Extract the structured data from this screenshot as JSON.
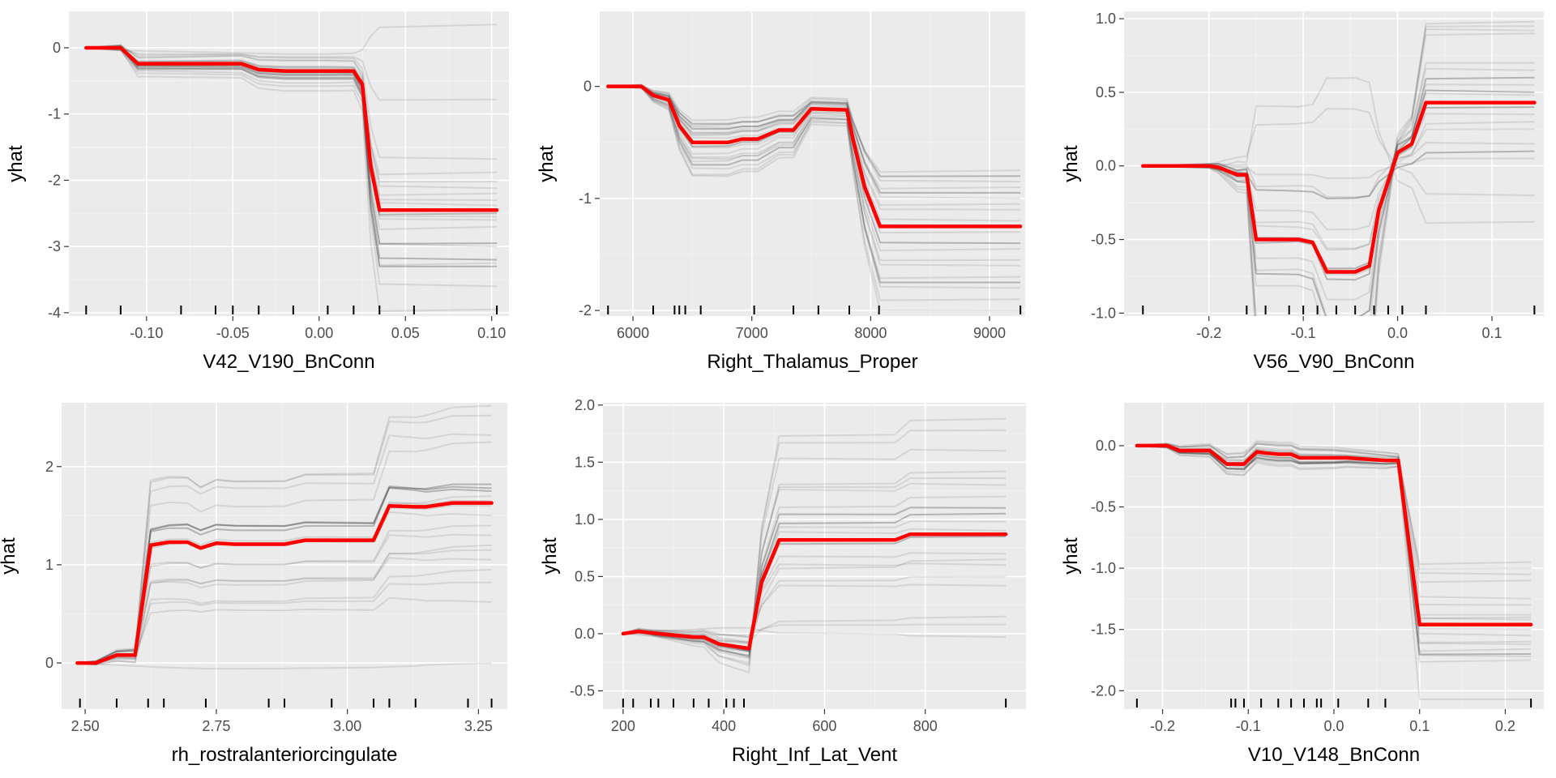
{
  "chart_data": [
    {
      "type": "line",
      "xlabel": "V42_V190_BnConn",
      "ylabel": "yhat",
      "xlim": [
        -0.145,
        0.11
      ],
      "ylim": [
        -4.05,
        0.55
      ],
      "x_ticks": [
        -0.1,
        -0.05,
        0.0,
        0.05,
        0.1
      ],
      "x_tick_labels": [
        "-0.10",
        "-0.05",
        "0.00",
        "0.05",
        "0.10"
      ],
      "y_ticks": [
        -4,
        -3,
        -2,
        -1,
        0
      ],
      "y_tick_labels": [
        "-4",
        "-3",
        "-2",
        "-1",
        "0"
      ],
      "pd_color": "#ff0000",
      "ice_color": "#333333",
      "rug": [
        -0.135,
        -0.115,
        -0.08,
        -0.06,
        -0.05,
        -0.035,
        -0.015,
        0.005,
        0.02,
        0.035,
        0.055,
        0.103
      ],
      "pd_x": [
        -0.135,
        -0.115,
        -0.105,
        -0.045,
        -0.035,
        -0.02,
        0.005,
        0.02,
        0.025,
        0.03,
        0.035,
        0.103
      ],
      "pd_y": [
        0.0,
        0.0,
        -0.24,
        -0.24,
        -0.33,
        -0.35,
        -0.35,
        -0.35,
        -0.55,
        -1.8,
        -2.45,
        -2.45
      ],
      "ice_x": [
        -0.135,
        -0.115,
        -0.105,
        -0.045,
        -0.035,
        -0.02,
        0.005,
        0.02,
        0.025,
        0.03,
        0.035,
        0.103
      ],
      "ice_start": [
        0.0,
        0.0,
        0.0,
        0.0,
        0.0,
        0.0,
        0.0,
        0.0,
        0.0,
        0.0,
        0.0,
        0.0,
        0.0,
        0.0,
        0.0,
        0.0,
        0.0,
        0.0,
        0.0,
        0.0
      ],
      "ice_final": [
        0.35,
        -0.78,
        -1.68,
        -1.88,
        -2.02,
        -2.12,
        -2.2,
        -2.3,
        -2.38,
        -2.5,
        -2.6,
        -2.7,
        -2.95,
        -3.2,
        -3.25,
        -3.3,
        -3.6,
        -3.95,
        -2.55,
        -3.0
      ],
      "ice_opacity": [
        0.12,
        0.12,
        0.12,
        0.12,
        0.12,
        0.12,
        0.12,
        0.12,
        0.12,
        0.3,
        0.12,
        0.12,
        0.3,
        0.3,
        0.12,
        0.3,
        0.12,
        0.12,
        0.12,
        0.12
      ]
    },
    {
      "type": "line",
      "xlabel": "Right_Thalamus_Proper",
      "ylabel": "yhat",
      "xlim": [
        5720,
        9300
      ],
      "ylim": [
        -2.05,
        0.67
      ],
      "x_ticks": [
        6000,
        7000,
        8000,
        9000
      ],
      "x_tick_labels": [
        "6000",
        "7000",
        "8000",
        "9000"
      ],
      "y_ticks": [
        -2,
        -1,
        0
      ],
      "y_tick_labels": [
        "-2",
        "-1",
        "0"
      ],
      "pd_color": "#ff0000",
      "ice_color": "#333333",
      "rug": [
        5790,
        6170,
        6350,
        6390,
        6440,
        6570,
        7020,
        7350,
        7560,
        7820,
        8070,
        9260
      ],
      "pd_x": [
        5790,
        6070,
        6170,
        6300,
        6390,
        6500,
        6800,
        6920,
        7050,
        7230,
        7350,
        7500,
        7800,
        7850,
        7950,
        8080,
        9260
      ],
      "pd_y": [
        0.0,
        0.0,
        -0.08,
        -0.12,
        -0.35,
        -0.5,
        -0.5,
        -0.47,
        -0.47,
        -0.39,
        -0.39,
        -0.2,
        -0.21,
        -0.47,
        -0.9,
        -1.25,
        -1.25
      ],
      "ice_x": [
        5790,
        6070,
        6170,
        6300,
        6390,
        6500,
        6800,
        6920,
        7050,
        7230,
        7350,
        7500,
        7800,
        7850,
        7950,
        8080,
        9260
      ],
      "ice_start": [
        0.0,
        0.0,
        0.0,
        0.0,
        0.0,
        0.0,
        0.0,
        0.0,
        0.0,
        0.0,
        0.0,
        0.0,
        0.0,
        0.0,
        0.0,
        0.0,
        0.0,
        0.0,
        0.0,
        0.0
      ],
      "ice_final": [
        -0.75,
        -0.8,
        -0.85,
        -0.9,
        -0.95,
        -1.0,
        -1.05,
        -1.1,
        -1.2,
        -1.3,
        -1.4,
        -1.45,
        -1.55,
        -1.6,
        -1.7,
        -1.75,
        -1.8,
        -1.9,
        -2.0,
        -1.25
      ],
      "ice_opacity": [
        0.12,
        0.3,
        0.12,
        0.12,
        0.3,
        0.12,
        0.12,
        0.12,
        0.12,
        0.12,
        0.3,
        0.12,
        0.12,
        0.12,
        0.12,
        0.3,
        0.12,
        0.12,
        0.12,
        0.12
      ]
    },
    {
      "type": "line",
      "xlabel": "V56_V90_BnConn",
      "ylabel": "yhat",
      "xlim": [
        -0.29,
        0.155
      ],
      "ylim": [
        -1.02,
        1.05
      ],
      "x_ticks": [
        -0.2,
        -0.1,
        0.0,
        0.1
      ],
      "x_tick_labels": [
        "-0.2",
        "-0.1",
        "0.0",
        "0.1"
      ],
      "y_ticks": [
        -1.0,
        -0.5,
        0.0,
        0.5,
        1.0
      ],
      "y_tick_labels": [
        "-1.0",
        "-0.5",
        "0.0",
        "0.5",
        "1.0"
      ],
      "pd_color": "#ff0000",
      "ice_color": "#333333",
      "rug": [
        -0.27,
        -0.16,
        -0.14,
        -0.115,
        -0.1,
        -0.085,
        -0.065,
        -0.045,
        -0.025,
        -0.01,
        0.005,
        0.03,
        0.145
      ],
      "pd_x": [
        -0.27,
        -0.2,
        -0.19,
        -0.17,
        -0.16,
        -0.15,
        -0.12,
        -0.105,
        -0.09,
        -0.075,
        -0.045,
        -0.03,
        -0.02,
        0.0,
        0.015,
        0.03,
        0.145
      ],
      "pd_y": [
        0.0,
        0.0,
        -0.01,
        -0.06,
        -0.06,
        -0.5,
        -0.5,
        -0.5,
        -0.52,
        -0.72,
        -0.72,
        -0.68,
        -0.3,
        0.09,
        0.15,
        0.43,
        0.43
      ],
      "ice_x": [
        -0.27,
        -0.2,
        -0.19,
        -0.17,
        -0.16,
        -0.15,
        -0.12,
        -0.105,
        -0.09,
        -0.075,
        -0.045,
        -0.03,
        -0.02,
        0.0,
        0.015,
        0.03,
        0.145
      ],
      "ice_start": [
        0.0,
        0.0,
        0.0,
        0.0,
        0.0,
        0.0,
        0.0,
        0.0,
        0.0,
        0.0,
        0.0,
        0.0,
        0.0,
        0.0,
        0.0,
        0.0,
        0.0,
        0.0,
        0.0,
        0.0
      ],
      "ice_final": [
        0.98,
        0.95,
        0.92,
        0.9,
        0.7,
        0.65,
        0.6,
        0.55,
        0.48,
        0.4,
        0.35,
        0.3,
        0.25,
        0.15,
        0.1,
        0.05,
        -0.2,
        -0.38,
        0.43,
        0.5
      ],
      "ice_opacity": [
        0.12,
        0.12,
        0.12,
        0.12,
        0.12,
        0.12,
        0.3,
        0.12,
        0.12,
        0.3,
        0.12,
        0.12,
        0.12,
        0.12,
        0.3,
        0.12,
        0.12,
        0.12,
        0.12,
        0.3
      ]
    },
    {
      "type": "line",
      "xlabel": "rh_rostralanteriorcingulate",
      "ylabel": "yhat",
      "xlim": [
        2.455,
        3.305
      ],
      "ylim": [
        -0.47,
        2.65
      ],
      "x_ticks": [
        2.5,
        2.75,
        3.0,
        3.25
      ],
      "x_tick_labels": [
        "2.50",
        "2.75",
        "3.00",
        "3.25"
      ],
      "y_ticks": [
        0,
        1,
        2
      ],
      "y_tick_labels": [
        "0",
        "1",
        "2"
      ],
      "pd_color": "#ff0000",
      "ice_color": "#333333",
      "rug": [
        2.49,
        2.56,
        2.62,
        2.65,
        2.73,
        2.85,
        2.88,
        2.97,
        3.05,
        3.08,
        3.13,
        3.23,
        3.275
      ],
      "pd_x": [
        2.485,
        2.52,
        2.56,
        2.595,
        2.625,
        2.66,
        2.695,
        2.72,
        2.75,
        2.785,
        2.88,
        2.92,
        3.05,
        3.08,
        3.13,
        3.15,
        3.2,
        3.275
      ],
      "pd_y": [
        0.0,
        0.0,
        0.08,
        0.08,
        1.2,
        1.23,
        1.23,
        1.17,
        1.22,
        1.21,
        1.21,
        1.25,
        1.25,
        1.6,
        1.59,
        1.59,
        1.63,
        1.63
      ],
      "ice_x": [
        2.485,
        2.52,
        2.56,
        2.595,
        2.625,
        2.66,
        2.695,
        2.72,
        2.75,
        2.785,
        2.88,
        2.92,
        3.05,
        3.08,
        3.13,
        3.15,
        3.2,
        3.275
      ],
      "ice_start": [
        0.0,
        0.0,
        0.0,
        0.0,
        0.0,
        0.0,
        0.0,
        0.0,
        0.0,
        0.0,
        0.0,
        0.0,
        0.0,
        0.0,
        0.0,
        0.0,
        0.0,
        0.0,
        0.0,
        0.0
      ],
      "ice_final": [
        2.62,
        2.52,
        2.32,
        2.25,
        1.82,
        1.78,
        1.7,
        1.65,
        1.5,
        1.4,
        1.3,
        1.2,
        1.15,
        1.05,
        0.95,
        0.82,
        0.62,
        0.0,
        1.6,
        1.75
      ],
      "ice_opacity": [
        0.12,
        0.12,
        0.12,
        0.12,
        0.3,
        0.3,
        0.12,
        0.12,
        0.12,
        0.12,
        0.12,
        0.12,
        0.12,
        0.12,
        0.12,
        0.12,
        0.12,
        0.12,
        0.12,
        0.3
      ]
    },
    {
      "type": "line",
      "xlabel": "Right_Inf_Lat_Vent",
      "ylabel": "yhat",
      "xlim": [
        160,
        1000
      ],
      "ylim": [
        -0.66,
        2.02
      ],
      "x_ticks": [
        200,
        400,
        600,
        800
      ],
      "x_tick_labels": [
        "200",
        "400",
        "600",
        "800"
      ],
      "y_ticks": [
        -0.5,
        0.0,
        0.5,
        1.0,
        1.5,
        2.0
      ],
      "y_tick_labels": [
        "-0.5",
        "0.0",
        "0.5",
        "1.0",
        "1.5",
        "2.0"
      ],
      "pd_color": "#ff0000",
      "ice_color": "#333333",
      "rug": [
        200,
        220,
        255,
        270,
        300,
        340,
        370,
        405,
        420,
        440,
        960
      ],
      "pd_x": [
        200,
        230,
        270,
        340,
        360,
        390,
        420,
        450,
        475,
        510,
        740,
        770,
        960
      ],
      "pd_y": [
        0.0,
        0.02,
        0.0,
        -0.03,
        -0.03,
        -0.09,
        -0.11,
        -0.13,
        0.45,
        0.82,
        0.82,
        0.87,
        0.87
      ],
      "ice_x": [
        200,
        230,
        270,
        340,
        360,
        390,
        420,
        450,
        475,
        510,
        740,
        770,
        960
      ],
      "ice_start": [
        0.0,
        0.0,
        0.0,
        0.0,
        0.0,
        0.0,
        0.0,
        0.0,
        0.0,
        0.0,
        0.0,
        0.0,
        0.0,
        0.0,
        0.0,
        0.0,
        0.0,
        0.0,
        0.0,
        0.0
      ],
      "ice_final": [
        1.88,
        1.78,
        1.6,
        1.42,
        1.36,
        1.3,
        1.05,
        0.98,
        0.9,
        0.85,
        0.7,
        0.65,
        0.5,
        0.42,
        0.15,
        0.08,
        -0.03,
        1.2,
        1.1,
        0.6
      ],
      "ice_opacity": [
        0.12,
        0.12,
        0.12,
        0.12,
        0.12,
        0.12,
        0.3,
        0.12,
        0.12,
        0.3,
        0.12,
        0.12,
        0.12,
        0.12,
        0.12,
        0.12,
        0.12,
        0.12,
        0.3,
        0.12
      ]
    },
    {
      "type": "line",
      "xlabel": "V10_V148_BnConn",
      "ylabel": "yhat",
      "xlim": [
        -0.245,
        0.245
      ],
      "ylim": [
        -2.15,
        0.35
      ],
      "x_ticks": [
        -0.2,
        -0.1,
        0.0,
        0.1,
        0.2
      ],
      "x_tick_labels": [
        "-0.2",
        "-0.1",
        "0.0",
        "0.1",
        "0.2"
      ],
      "y_ticks": [
        -2.0,
        -1.5,
        -1.0,
        -0.5,
        0.0
      ],
      "y_tick_labels": [
        "-2.0",
        "-1.5",
        "-1.0",
        "-0.5",
        "0.0"
      ],
      "pd_color": "#ff0000",
      "ice_color": "#333333",
      "rug": [
        -0.23,
        -0.12,
        -0.115,
        -0.105,
        -0.085,
        -0.065,
        -0.05,
        -0.035,
        -0.02,
        -0.015,
        0.005,
        0.04,
        0.06,
        0.23
      ],
      "pd_x": [
        -0.23,
        -0.195,
        -0.18,
        -0.145,
        -0.125,
        -0.105,
        -0.09,
        -0.08,
        -0.065,
        -0.05,
        -0.04,
        0.0,
        0.015,
        0.06,
        0.075,
        0.1,
        0.23
      ],
      "pd_y": [
        0.0,
        0.0,
        -0.04,
        -0.04,
        -0.15,
        -0.15,
        -0.05,
        -0.06,
        -0.07,
        -0.07,
        -0.1,
        -0.1,
        -0.1,
        -0.12,
        -0.12,
        -1.46,
        -1.46
      ],
      "ice_x": [
        -0.23,
        -0.195,
        -0.18,
        -0.145,
        -0.125,
        -0.105,
        -0.09,
        -0.08,
        -0.065,
        -0.05,
        -0.04,
        0.0,
        0.015,
        0.06,
        0.075,
        0.1,
        0.23
      ],
      "ice_start": [
        0.0,
        0.0,
        0.0,
        0.0,
        0.0,
        0.0,
        0.0,
        0.0,
        0.0,
        0.0,
        0.0,
        0.0,
        0.0,
        0.0,
        0.0,
        0.0,
        0.0,
        0.0,
        0.0,
        0.0
      ],
      "ice_final": [
        -0.95,
        -1.0,
        -1.05,
        -1.1,
        -1.38,
        -1.42,
        -1.45,
        -1.5,
        -1.55,
        -1.6,
        -1.62,
        -1.66,
        -1.7,
        -1.72,
        -1.75,
        -2.07,
        -1.46,
        -1.4,
        -1.3,
        -1.25
      ],
      "ice_opacity": [
        0.12,
        0.12,
        0.12,
        0.12,
        0.12,
        0.12,
        0.3,
        0.12,
        0.12,
        0.12,
        0.12,
        0.12,
        0.3,
        0.12,
        0.12,
        0.12,
        0.12,
        0.12,
        0.12,
        0.12
      ]
    }
  ]
}
